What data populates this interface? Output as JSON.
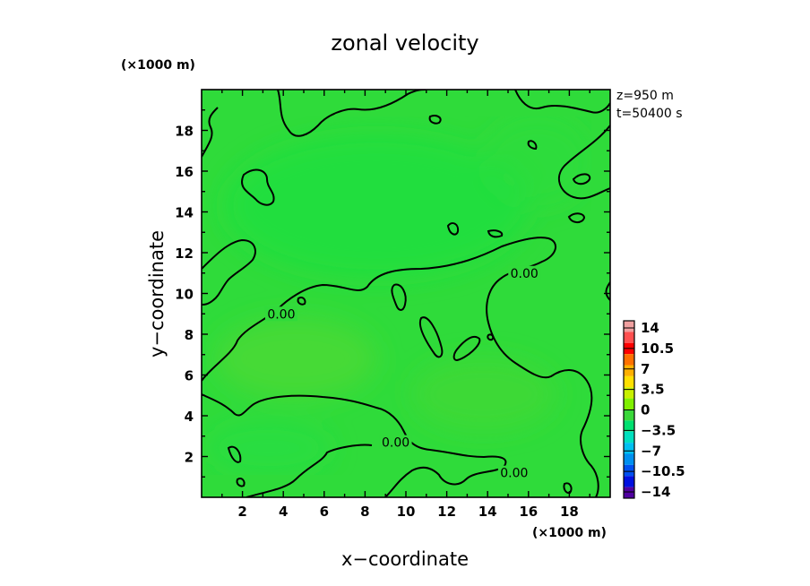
{
  "chart_data": {
    "type": "heatmap",
    "title": "zonal velocity",
    "xlabel": "x−coordinate",
    "ylabel": "y−coordinate",
    "x_unit_label": "(×1000 m)",
    "y_unit_label": "(×1000 m)",
    "xlim": [
      0,
      20
    ],
    "ylim": [
      0,
      20
    ],
    "x_ticks": [
      2,
      4,
      6,
      8,
      10,
      12,
      14,
      16,
      18
    ],
    "y_ticks": [
      2,
      4,
      6,
      8,
      10,
      12,
      14,
      16,
      18
    ],
    "info": [
      "z=950 m",
      "t=50400 s"
    ],
    "contour_labels": [
      {
        "text": "0.00",
        "x": 3.9,
        "y": 9.0
      },
      {
        "text": "0.00",
        "x": 15.8,
        "y": 11.0
      },
      {
        "text": "0.00",
        "x": 9.5,
        "y": 2.7
      },
      {
        "text": "0.00",
        "x": 15.3,
        "y": 1.2
      }
    ],
    "colorbar": {
      "labels": [
        "14",
        "10.5",
        "7",
        "3.5",
        "0",
        "−3.5",
        "−7",
        "−10.5",
        "−14"
      ],
      "colors": [
        "#f0a0a0",
        "#ff5050",
        "#ff0000",
        "#ff7000",
        "#ffb000",
        "#ffe000",
        "#c8f000",
        "#80f000",
        "#3ad83a",
        "#00e070",
        "#00e0c0",
        "#00c0f0",
        "#0090f0",
        "#0050f0",
        "#0010e0",
        "#5000a0"
      ]
    }
  }
}
